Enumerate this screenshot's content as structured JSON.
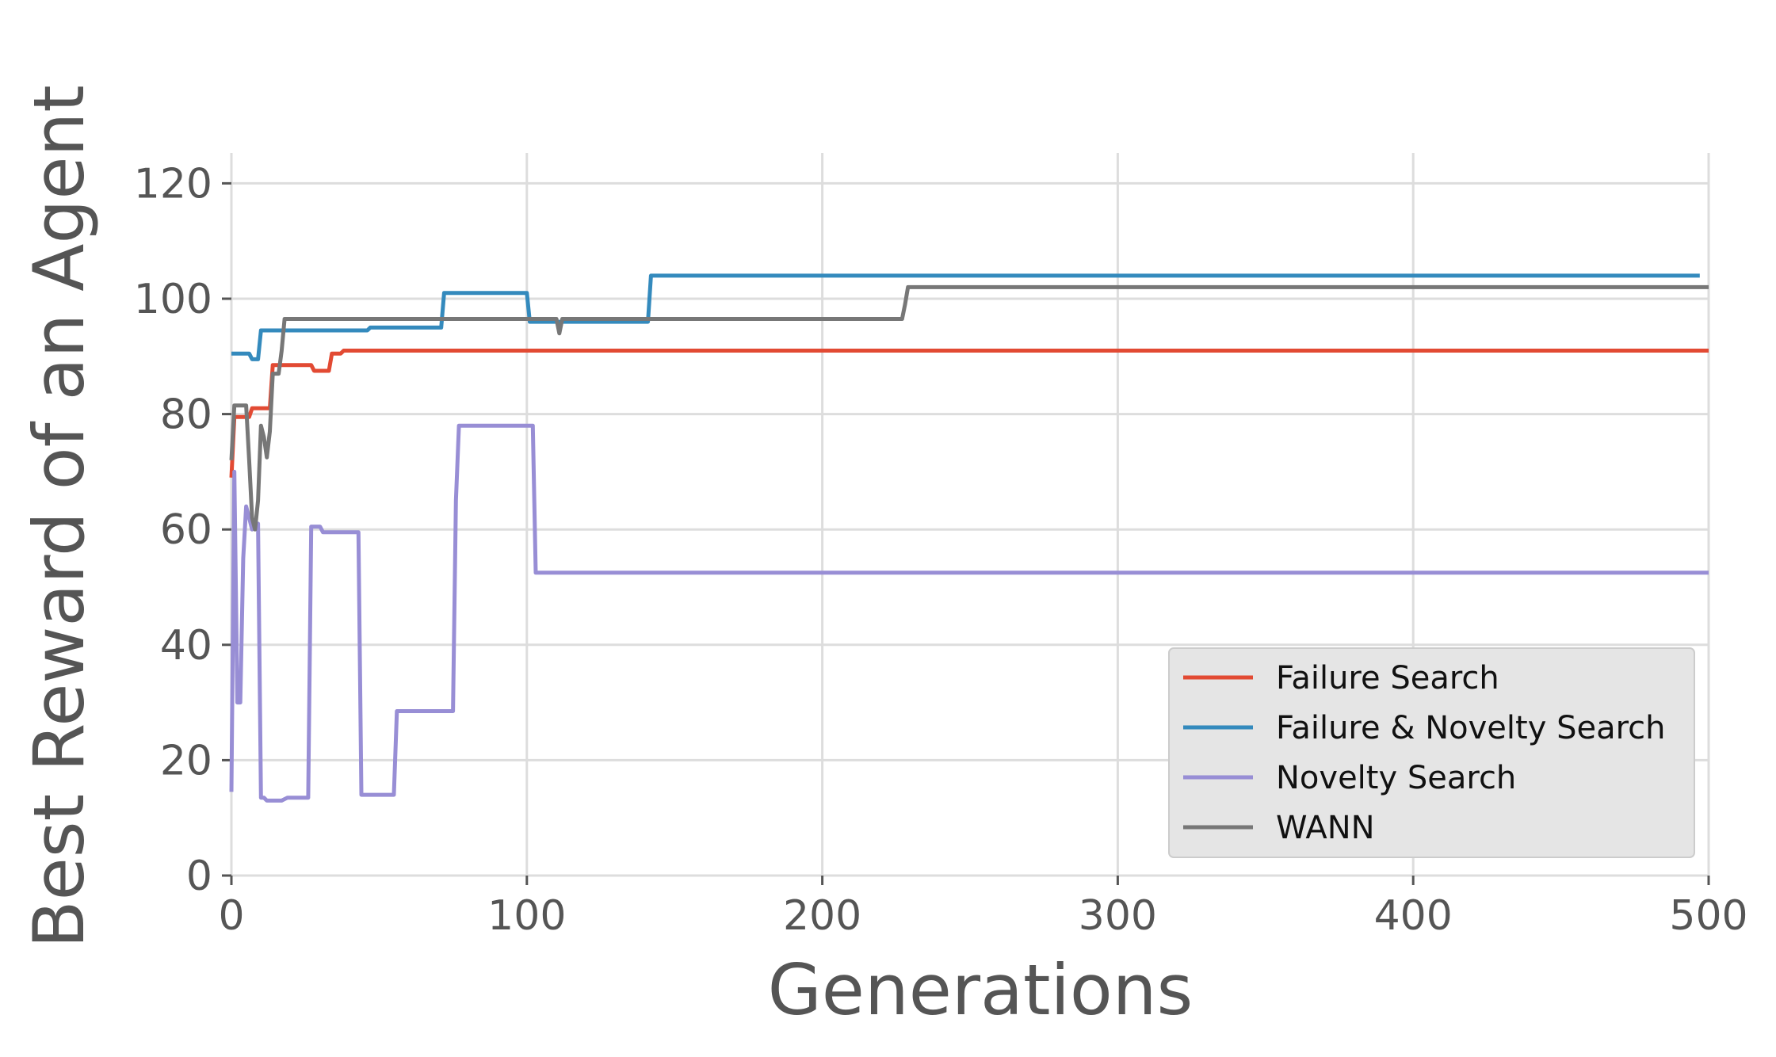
{
  "chart_data": {
    "type": "line",
    "title": "",
    "xlabel": "Generations",
    "ylabel": "Best Reward of an Agent",
    "xlim": [
      0,
      500
    ],
    "ylim": [
      0,
      125
    ],
    "xticks": [
      0,
      100,
      200,
      300,
      400,
      500
    ],
    "yticks": [
      0,
      20,
      40,
      60,
      80,
      100,
      120
    ],
    "grid": true,
    "legend_position": "lower-right",
    "series": [
      {
        "name": "Failure Search",
        "color": "#E24A33",
        "x": [
          0,
          1,
          6,
          7,
          10,
          13,
          14,
          27,
          28,
          33,
          34,
          37,
          38,
          500
        ],
        "y": [
          69,
          79.5,
          79.5,
          81,
          81,
          81,
          88.5,
          88.5,
          87.5,
          87.5,
          90.5,
          90.5,
          91,
          91
        ]
      },
      {
        "name": "Failure & Novelty Search",
        "color": "#348ABD",
        "x": [
          0,
          6,
          7,
          9,
          10,
          46,
          47,
          71,
          72,
          100,
          101,
          141,
          142,
          497
        ],
        "y": [
          90.5,
          90.5,
          89.5,
          89.5,
          94.5,
          94.5,
          95,
          95,
          101,
          101,
          96,
          96,
          104,
          104
        ]
      },
      {
        "name": "Novelty Search",
        "color": "#988ED5",
        "x": [
          0,
          1,
          2,
          3,
          4,
          5,
          6,
          7,
          8,
          9,
          10,
          11,
          12,
          13,
          17,
          19,
          20,
          26,
          27,
          30,
          31,
          43,
          44,
          55,
          56,
          75,
          76,
          77,
          78,
          102,
          103,
          500
        ],
        "y": [
          14.5,
          70,
          30,
          30,
          55,
          64,
          62,
          60,
          61,
          61,
          13.5,
          13.5,
          13,
          13,
          13,
          13.5,
          13.5,
          13.5,
          60.5,
          60.5,
          59.5,
          59.5,
          14,
          14,
          28.5,
          28.5,
          65,
          78,
          78,
          78,
          52.5,
          52.5
        ]
      },
      {
        "name": "WANN",
        "color": "#777777",
        "x": [
          0,
          1,
          5,
          6,
          7,
          8,
          9,
          10,
          11,
          12,
          13,
          14,
          16,
          17,
          18,
          19,
          110,
          111,
          112,
          113,
          227,
          228,
          229,
          500
        ],
        "y": [
          72,
          81.5,
          81.5,
          72,
          62,
          60,
          65,
          78,
          76,
          72.5,
          77,
          87,
          87,
          91,
          96.5,
          96.5,
          96.5,
          94,
          96.5,
          96.5,
          96.5,
          99,
          102,
          102
        ]
      }
    ]
  }
}
